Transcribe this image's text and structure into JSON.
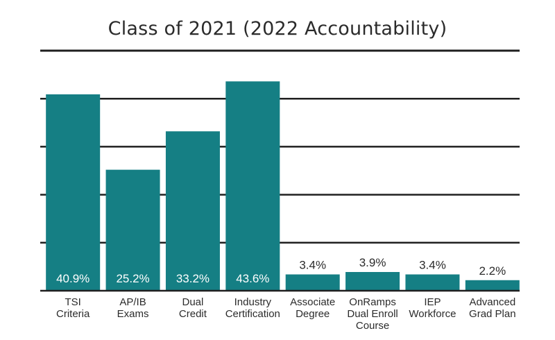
{
  "chart_data": {
    "type": "bar",
    "title": "Class of 2021 (2022 Accountability)",
    "categories": [
      [
        "TSI",
        "Criteria"
      ],
      [
        "AP/IB",
        "Exams"
      ],
      [
        "Dual",
        "Credit"
      ],
      [
        "Industry",
        "Certification"
      ],
      [
        "Associate",
        "Degree"
      ],
      [
        "OnRamps",
        "Dual Enroll",
        "Course"
      ],
      [
        "IEP",
        "Workforce"
      ],
      [
        "Advanced",
        "Grad Plan"
      ]
    ],
    "values": [
      40.9,
      25.2,
      33.2,
      43.6,
      3.4,
      3.9,
      3.4,
      2.2
    ],
    "value_labels": [
      "40.9%",
      "25.2%",
      "33.2%",
      "43.6%",
      "3.4%",
      "3.9%",
      "3.4%",
      "2.2%"
    ],
    "ylim": [
      0,
      50
    ],
    "grid": true,
    "bar_color": "#157f84"
  }
}
